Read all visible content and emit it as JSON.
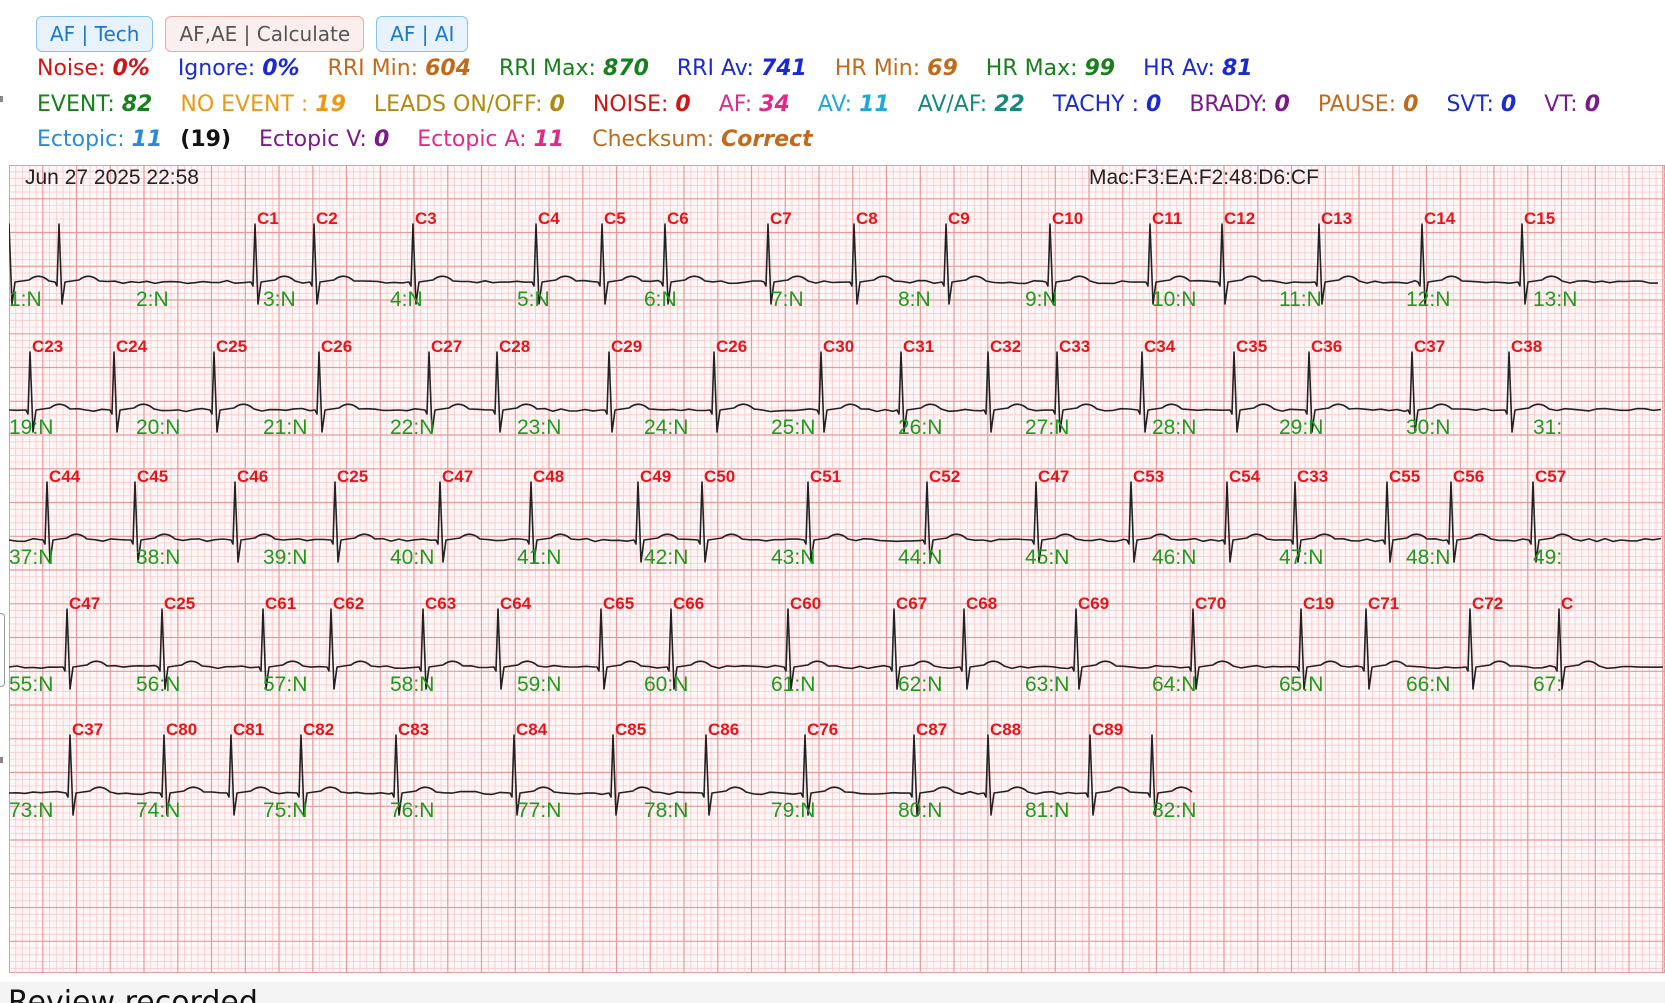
{
  "buttons": [
    {
      "label": "AF | Tech"
    },
    {
      "label": "AF,AE | Calculate"
    },
    {
      "label": "AF | AI"
    }
  ],
  "stats_row1": [
    {
      "label": "Noise:",
      "value": "0%",
      "color": "#d01515"
    },
    {
      "label": "Ignore:",
      "value": "0%",
      "color": "#1a2ad0"
    },
    {
      "label": "RRI Min:",
      "value": "604",
      "color": "#c06a1c"
    },
    {
      "label": "RRI Max:",
      "value": "870",
      "color": "#17801c"
    },
    {
      "label": "RRI Av:",
      "value": "741",
      "color": "#1a2ad0"
    },
    {
      "label": "HR Min:",
      "value": "69",
      "color": "#c06a1c"
    },
    {
      "label": "HR Max:",
      "value": "99",
      "color": "#17801c"
    },
    {
      "label": "HR Av:",
      "value": "81",
      "color": "#1a2ad0"
    }
  ],
  "stats_row2": [
    {
      "label": "EVENT:",
      "value": "82",
      "color": "#17801c"
    },
    {
      "label": "NO EVENT :",
      "value": "19",
      "color": "#e89a14"
    },
    {
      "label": "LEADS ON/OFF:",
      "value": "0",
      "color": "#b08a10"
    },
    {
      "label": "NOISE:",
      "value": "0",
      "color": "#d01515"
    },
    {
      "label": "AF:",
      "value": "34",
      "color": "#e02a8a"
    },
    {
      "label": "AV:",
      "value": "11",
      "color": "#1fa9d8"
    },
    {
      "label": "AV/AF:",
      "value": "22",
      "color": "#158a7a"
    },
    {
      "label": "TACHY :",
      "value": "0",
      "color": "#1a2ad0"
    },
    {
      "label": "BRADY:",
      "value": "0",
      "color": "#7a1a8a"
    },
    {
      "label": "PAUSE:",
      "value": "0",
      "color": "#c06a1c"
    },
    {
      "label": "SVT:",
      "value": "0",
      "color": "#1a2ad0"
    },
    {
      "label": "VT:",
      "value": "0",
      "color": "#7a1a8a"
    }
  ],
  "stats_row3": {
    "ectopic_label": "Ectopic:",
    "ectopic_value": "11",
    "ectopic_color": "#2a8ad8",
    "ectopic_total": "(19)",
    "ectopic_v_label": "Ectopic V:",
    "ectopic_v_value": "0",
    "ectopic_v_color": "#7a1a8a",
    "ectopic_a_label": "Ectopic A:",
    "ectopic_a_value": "11",
    "ectopic_a_color": "#e02a8a",
    "checksum_label": "Checksum:",
    "checksum_value": "Correct",
    "checksum_color": "#c06a1c"
  },
  "ecg": {
    "timestamp": "Jun 27 2025 22:58",
    "mac": "Mac:F3:EA:F2:48:D6:CF",
    "colors": {
      "grid_minor": "#f6c9c9",
      "grid_major": "#e49a9a",
      "trace": "#222222",
      "cluster_label": "#e8141a",
      "beat_label": "#1e9a1e"
    },
    "rows": [
      {
        "beats": [
          {
            "cluster": "",
            "beat": "1:N"
          },
          {
            "cluster": "",
            "beat": ""
          },
          {
            "cluster": "C1",
            "beat": "2:N"
          },
          {
            "cluster": "C2",
            "beat": "3:N"
          },
          {
            "cluster": "C3",
            "beat": "4:N"
          },
          {
            "cluster": "C4",
            "beat": "5:N"
          },
          {
            "cluster": "C5",
            "beat": ""
          },
          {
            "cluster": "C6",
            "beat": "6:N"
          },
          {
            "cluster": "C7",
            "beat": "7:N"
          },
          {
            "cluster": "C8",
            "beat": "8:N"
          },
          {
            "cluster": "C9",
            "beat": ""
          },
          {
            "cluster": "C10",
            "beat": "9:N"
          },
          {
            "cluster": "C11",
            "beat": "10:N"
          },
          {
            "cluster": "C12",
            "beat": ""
          },
          {
            "cluster": "C13",
            "beat": "11:N"
          },
          {
            "cluster": "C14",
            "beat": "12:N"
          },
          {
            "cluster": "C15",
            "beat": "13:N"
          }
        ]
      },
      {
        "beats": [
          {
            "cluster": "C23",
            "beat": "19:N"
          },
          {
            "cluster": "C24",
            "beat": "20:N"
          },
          {
            "cluster": "C25",
            "beat": "21:N"
          },
          {
            "cluster": "C26",
            "beat": ""
          },
          {
            "cluster": "C27",
            "beat": "22:N"
          },
          {
            "cluster": "C28",
            "beat": "23:N"
          },
          {
            "cluster": "C29",
            "beat": "24:N"
          },
          {
            "cluster": "C26",
            "beat": ""
          },
          {
            "cluster": "C30",
            "beat": "25:N"
          },
          {
            "cluster": "C31",
            "beat": "26:N"
          },
          {
            "cluster": "C32",
            "beat": ""
          },
          {
            "cluster": "C33",
            "beat": "27:N"
          },
          {
            "cluster": "C34",
            "beat": "28:N"
          },
          {
            "cluster": "C35",
            "beat": ""
          },
          {
            "cluster": "C36",
            "beat": "29:N"
          },
          {
            "cluster": "C37",
            "beat": "30:N"
          },
          {
            "cluster": "C38",
            "beat": "31:"
          }
        ]
      },
      {
        "beats": [
          {
            "cluster": "C44",
            "beat": "37:N"
          },
          {
            "cluster": "C45",
            "beat": "38:N"
          },
          {
            "cluster": "C46",
            "beat": "39:N"
          },
          {
            "cluster": "C25",
            "beat": ""
          },
          {
            "cluster": "C47",
            "beat": "40:N"
          },
          {
            "cluster": "C48",
            "beat": "41:N"
          },
          {
            "cluster": "C49",
            "beat": "42:N"
          },
          {
            "cluster": "C50",
            "beat": ""
          },
          {
            "cluster": "C51",
            "beat": "43:N"
          },
          {
            "cluster": "C52",
            "beat": "44:N"
          },
          {
            "cluster": "C47",
            "beat": "45:N"
          },
          {
            "cluster": "C53",
            "beat": "46:N"
          },
          {
            "cluster": "C54",
            "beat": ""
          },
          {
            "cluster": "C33",
            "beat": "47:N"
          },
          {
            "cluster": "C55",
            "beat": ""
          },
          {
            "cluster": "C56",
            "beat": "48:N"
          },
          {
            "cluster": "C57",
            "beat": "49:"
          }
        ]
      },
      {
        "beats": [
          {
            "cluster": "C47",
            "beat": "55:N"
          },
          {
            "cluster": "C25",
            "beat": "56:N"
          },
          {
            "cluster": "C61",
            "beat": "57:N"
          },
          {
            "cluster": "C62",
            "beat": ""
          },
          {
            "cluster": "C63",
            "beat": "58:N"
          },
          {
            "cluster": "C64",
            "beat": "59:N"
          },
          {
            "cluster": "C65",
            "beat": ""
          },
          {
            "cluster": "C66",
            "beat": "60:N"
          },
          {
            "cluster": "C60",
            "beat": "61:N"
          },
          {
            "cluster": "C67",
            "beat": "62:N"
          },
          {
            "cluster": "C68",
            "beat": ""
          },
          {
            "cluster": "C69",
            "beat": "63:N"
          },
          {
            "cluster": "C70",
            "beat": "64:N"
          },
          {
            "cluster": "C19",
            "beat": "65:N"
          },
          {
            "cluster": "C71",
            "beat": "66:N"
          },
          {
            "cluster": "C72",
            "beat": ""
          },
          {
            "cluster": "C",
            "beat": "67:"
          }
        ]
      },
      {
        "beats": [
          {
            "cluster": "C37",
            "beat": "73:N"
          },
          {
            "cluster": "C80",
            "beat": "74:N"
          },
          {
            "cluster": "C81",
            "beat": "75:N"
          },
          {
            "cluster": "C82",
            "beat": ""
          },
          {
            "cluster": "C83",
            "beat": "76:N"
          },
          {
            "cluster": "C84",
            "beat": "77:N"
          },
          {
            "cluster": "C85",
            "beat": "78:N"
          },
          {
            "cluster": "C86",
            "beat": ""
          },
          {
            "cluster": "C76",
            "beat": "79:N"
          },
          {
            "cluster": "C87",
            "beat": "80:N"
          },
          {
            "cluster": "C88",
            "beat": "81:N"
          },
          {
            "cluster": "C89",
            "beat": ""
          },
          {
            "cluster": "",
            "beat": "82:N"
          }
        ]
      }
    ]
  },
  "bottom_text": "Review recorded..."
}
